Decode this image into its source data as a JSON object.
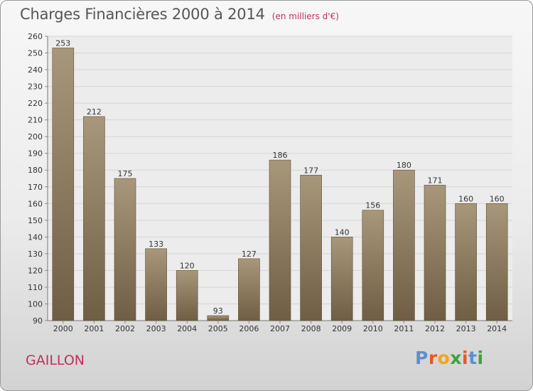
{
  "header": {
    "title": "Charges Financières 2000 à 2014",
    "subtitle": "(en milliers d'€)"
  },
  "footer": {
    "city": "GAILLON",
    "logo": "Proxiti"
  },
  "colors": {
    "bar_top": "#a8977a",
    "bar_bottom": "#6f5e44",
    "accent": "#c0305a",
    "logo_letters": [
      "#5b8fd1",
      "#e8572a",
      "#f3a31b",
      "#3aa53a",
      "#e8572a",
      "#5b8fd1",
      "#3aa53a"
    ]
  },
  "chart_data": {
    "type": "bar",
    "title": "Charges Financières 2000 à 2014",
    "subtitle": "(en milliers d'€)",
    "categories": [
      "2000",
      "2001",
      "2002",
      "2003",
      "2004",
      "2005",
      "2006",
      "2007",
      "2008",
      "2009",
      "2010",
      "2011",
      "2012",
      "2013",
      "2014"
    ],
    "values": [
      253,
      212,
      175,
      133,
      120,
      93,
      127,
      186,
      177,
      140,
      156,
      180,
      171,
      160,
      160
    ],
    "ylim": [
      90,
      260
    ],
    "yticks": [
      90,
      100,
      110,
      120,
      130,
      140,
      150,
      160,
      170,
      180,
      190,
      200,
      210,
      220,
      230,
      240,
      250,
      260
    ],
    "grid": true,
    "xlabel": "",
    "ylabel": ""
  }
}
